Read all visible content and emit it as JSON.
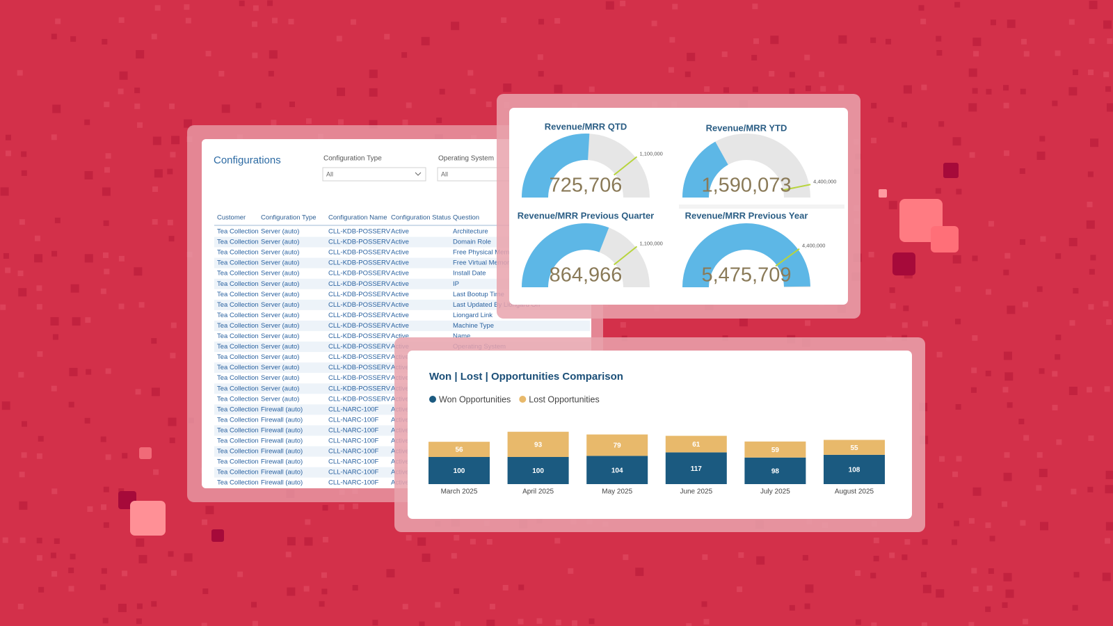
{
  "configurations": {
    "title": "Configurations",
    "filters": [
      {
        "label": "Configuration Type",
        "value": "All"
      },
      {
        "label": "Operating System",
        "value": "All"
      }
    ],
    "table": {
      "headers": [
        "Customer",
        "Configuration Type",
        "Configuration Name",
        "Configuration Status",
        "Question"
      ],
      "rows": [
        [
          "Tea Collection",
          "Server (auto)",
          "CLL-KDB-POSSERV",
          "Active",
          "Architecture"
        ],
        [
          "Tea Collection",
          "Server (auto)",
          "CLL-KDB-POSSERV",
          "Active",
          "Domain Role"
        ],
        [
          "Tea Collection",
          "Server (auto)",
          "CLL-KDB-POSSERV",
          "Active",
          "Free Physical Memory"
        ],
        [
          "Tea Collection",
          "Server (auto)",
          "CLL-KDB-POSSERV",
          "Active",
          "Free Virtual Memory"
        ],
        [
          "Tea Collection",
          "Server (auto)",
          "CLL-KDB-POSSERV",
          "Active",
          "Install Date"
        ],
        [
          "Tea Collection",
          "Server (auto)",
          "CLL-KDB-POSSERV",
          "Active",
          "IP"
        ],
        [
          "Tea Collection",
          "Server (auto)",
          "CLL-KDB-POSSERV",
          "Active",
          "Last Bootup Time"
        ],
        [
          "Tea Collection",
          "Server (auto)",
          "CLL-KDB-POSSERV",
          "Active",
          "Last Updated By Liongard On"
        ],
        [
          "Tea Collection",
          "Server (auto)",
          "CLL-KDB-POSSERV",
          "Active",
          "Liongard Link"
        ],
        [
          "Tea Collection",
          "Server (auto)",
          "CLL-KDB-POSSERV",
          "Active",
          "Machine Type"
        ],
        [
          "Tea Collection",
          "Server (auto)",
          "CLL-KDB-POSSERV",
          "Active",
          "Name"
        ],
        [
          "Tea Collection",
          "Server (auto)",
          "CLL-KDB-POSSERV",
          "Active",
          "Operating System"
        ],
        [
          "Tea Collection",
          "Server (auto)",
          "CLL-KDB-POSSERV",
          "Active"
        ],
        [
          "Tea Collection",
          "Server (auto)",
          "CLL-KDB-POSSERV",
          "Active"
        ],
        [
          "Tea Collection",
          "Server (auto)",
          "CLL-KDB-POSSERV",
          "Active"
        ],
        [
          "Tea Collection",
          "Server (auto)",
          "CLL-KDB-POSSERV",
          "Active"
        ],
        [
          "Tea Collection",
          "Server (auto)",
          "CLL-KDB-POSSERV",
          "Active"
        ],
        [
          "Tea Collection",
          "Firewall (auto)",
          "CLL-NARC-100F",
          "Active"
        ],
        [
          "Tea Collection",
          "Firewall (auto)",
          "CLL-NARC-100F",
          "Active"
        ],
        [
          "Tea Collection",
          "Firewall (auto)",
          "CLL-NARC-100F",
          "Active"
        ],
        [
          "Tea Collection",
          "Firewall (auto)",
          "CLL-NARC-100F",
          "Active"
        ],
        [
          "Tea Collection",
          "Firewall (auto)",
          "CLL-NARC-100F",
          "Active"
        ],
        [
          "Tea Collection",
          "Firewall (auto)",
          "CLL-NARC-100F",
          "Active"
        ],
        [
          "Tea Collection",
          "Firewall (auto)",
          "CLL-NARC-100F",
          "Active"
        ],
        [
          "Tea Collection",
          "Firewall (auto)",
          "CLL-NARC-100F",
          "Active"
        ]
      ]
    }
  },
  "chart_data": [
    {
      "type": "gauge",
      "title": "Revenue/MRR QTD",
      "values": [
        725706
      ],
      "value_labels": [
        "725,706"
      ],
      "target": {
        "value": 1100000,
        "label": "1,100,000"
      },
      "ylim": [
        0,
        1400000
      ],
      "color": "#5db7e6"
    },
    {
      "type": "gauge",
      "title": "Revenue/MRR YTD",
      "values": [
        1590073
      ],
      "value_labels": [
        "1,590,073"
      ],
      "target": {
        "value": 4400000,
        "label": "4,400,000"
      },
      "ylim": [
        0,
        4700000
      ],
      "color": "#5db7e6"
    },
    {
      "type": "gauge",
      "title": "Revenue/MRR Previous Quarter",
      "values": [
        864966
      ],
      "value_labels": [
        "864,966"
      ],
      "target": {
        "value": 1100000,
        "label": "1,100,000"
      },
      "ylim": [
        0,
        1400000
      ],
      "color": "#5db7e6"
    },
    {
      "type": "gauge",
      "title": "Revenue/MRR Previous Year",
      "values": [
        5475709
      ],
      "value_labels": [
        "5,475,709"
      ],
      "target": {
        "value": 4400000,
        "label": "4,400,000"
      },
      "ylim": [
        0,
        5500000
      ],
      "color": "#5db7e6"
    },
    {
      "type": "stacked_bar",
      "title": "Won | Lost | Opportunities Comparison",
      "categories": [
        "March 2025",
        "April 2025",
        "May 2025",
        "June 2025",
        "July 2025",
        "August 2025"
      ],
      "series": [
        {
          "name": "Won Opportunities",
          "color": "#1b5a80",
          "values": [
            100,
            100,
            104,
            117,
            98,
            108
          ]
        },
        {
          "name": "Lost Opportunities",
          "color": "#e8b96b",
          "values": [
            56,
            93,
            79,
            61,
            59,
            55
          ]
        }
      ],
      "ylim": [
        0,
        200
      ],
      "legend": "top"
    }
  ]
}
